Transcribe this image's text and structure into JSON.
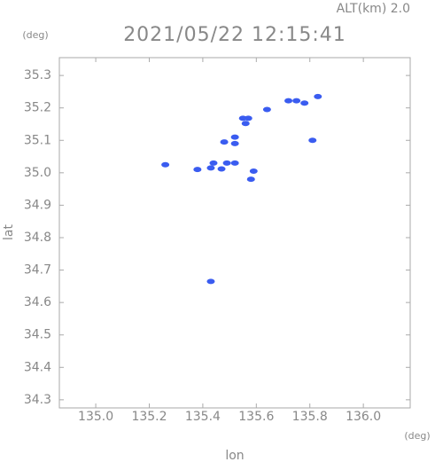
{
  "chart_data": {
    "type": "scatter",
    "title": "2021/05/22 12:15:41",
    "subtitle": "ALT(km) 2.0",
    "x_label": "lon",
    "y_label": "lat",
    "x_unit": "(deg)",
    "y_unit": "(deg)",
    "color": "#3a5cf0",
    "x": [
      135.26,
      135.38,
      135.43,
      135.44,
      135.47,
      135.49,
      135.52,
      135.59,
      135.58,
      135.48,
      135.52,
      135.52,
      135.55,
      135.57,
      135.56,
      135.64,
      135.72,
      135.75,
      135.78,
      135.83,
      135.43,
      135.81
    ],
    "y": [
      35.025,
      35.01,
      35.015,
      35.03,
      35.012,
      35.03,
      35.03,
      35.005,
      34.98,
      35.095,
      35.09,
      35.11,
      35.168,
      35.168,
      35.152,
      35.195,
      35.222,
      35.222,
      35.215,
      35.235,
      34.665,
      35.1
    ],
    "xlim": [
      134.864,
      136.175
    ],
    "ylim": [
      34.275,
      35.355
    ],
    "xticks": [
      {
        "value": 135.0,
        "label": "135.0"
      },
      135.2,
      135.4,
      135.6,
      135.8,
      {
        "value": 136.0,
        "label": "136.0"
      }
    ],
    "yticks": [
      34.3,
      34.4,
      34.5,
      34.6,
      34.7,
      34.8,
      34.9,
      {
        "value": 35.0,
        "label": "35.0"
      },
      35.1,
      35.2,
      35.3
    ]
  }
}
